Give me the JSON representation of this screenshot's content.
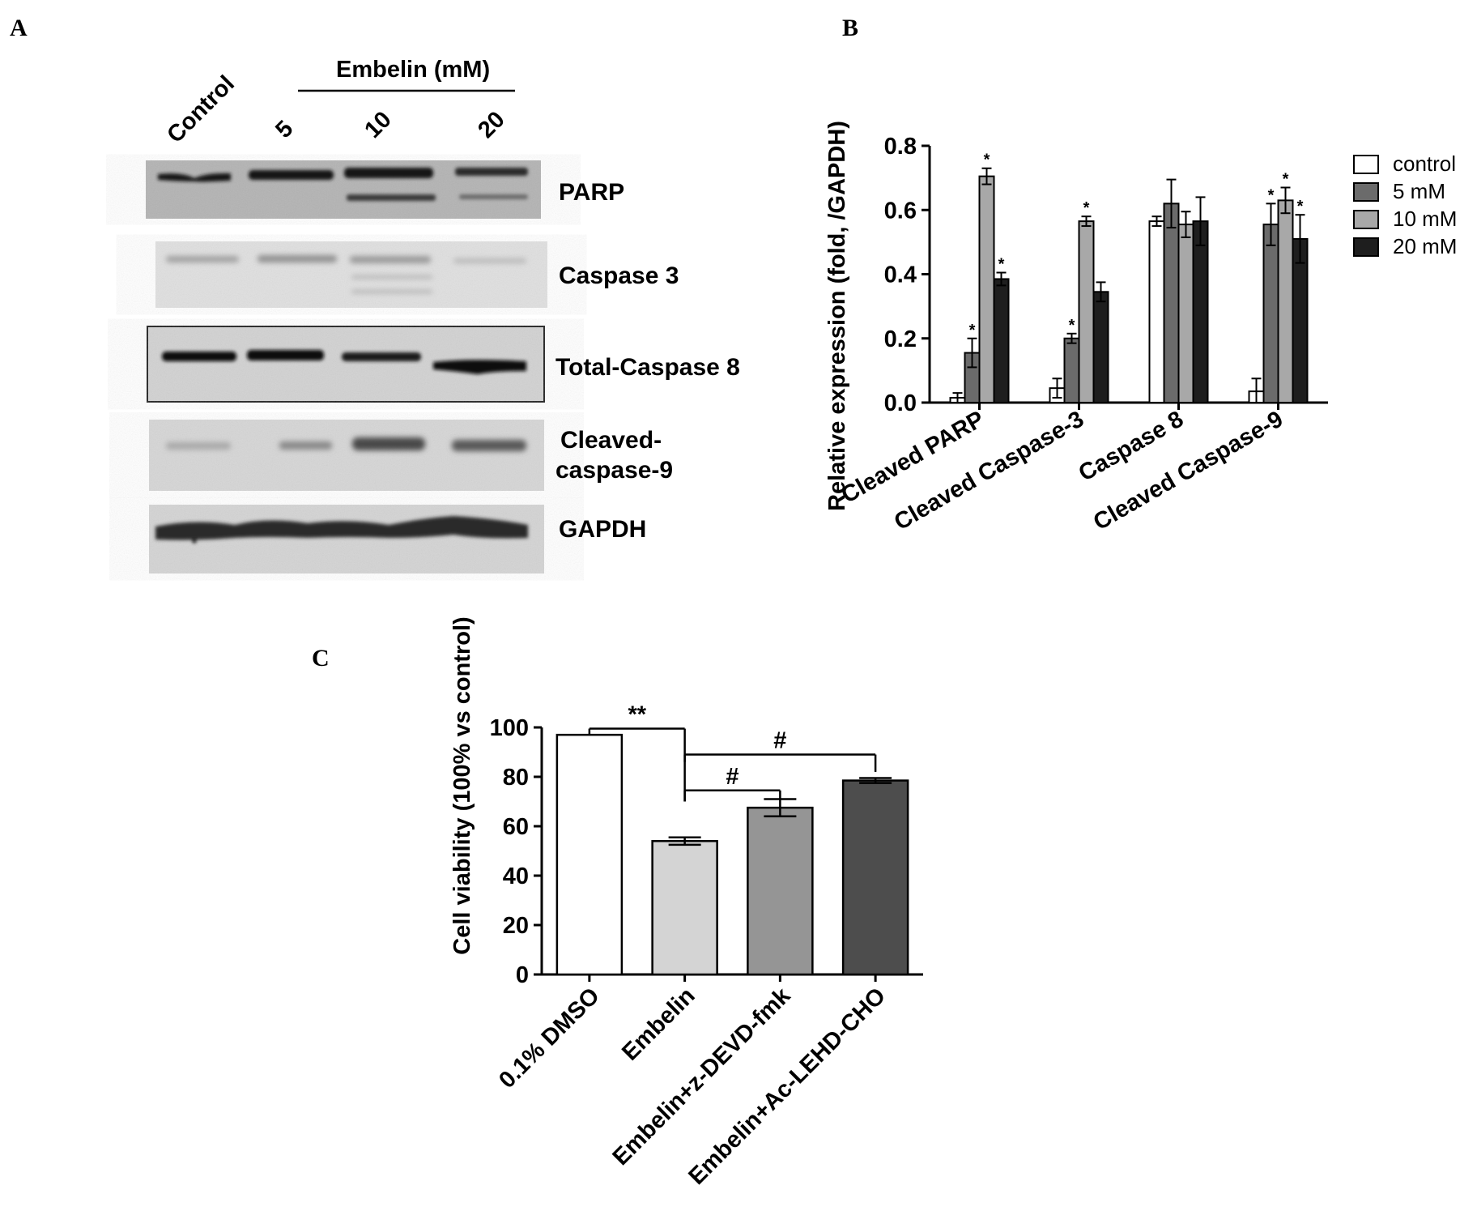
{
  "panels": {
    "a": "A",
    "b": "B",
    "c": "C"
  },
  "blot": {
    "header": "Embelin  (mM)",
    "lanes": [
      "Control",
      "5",
      "10",
      "20"
    ],
    "rows": [
      {
        "label": "PARP"
      },
      {
        "label": "Caspase 3"
      },
      {
        "label": "Total-Caspase 8"
      },
      {
        "label": "Cleaved-\ncaspase-9"
      },
      {
        "label": "GAPDH"
      }
    ]
  },
  "chart_data": [
    {
      "type": "bar",
      "panel": "B",
      "ylabel": "Relative expression (fold, /GAPDH)",
      "ylim": [
        0,
        0.8
      ],
      "yticks": [
        "0.0",
        "0.2",
        "0.4",
        "0.6",
        "0.8"
      ],
      "categories": [
        "Cleaved PARP",
        "Cleaved Caspase-3",
        "Caspase 8",
        "Cleaved Caspase-9"
      ],
      "legend_position": "right",
      "series": [
        {
          "name": "control",
          "values": [
            0.015,
            0.045,
            0.565,
            0.035
          ],
          "errors": [
            0.015,
            0.03,
            0.015,
            0.04
          ],
          "sig": [
            "",
            "",
            "",
            ""
          ],
          "color": "#ffffff"
        },
        {
          "name": "5 mM",
          "values": [
            0.155,
            0.2,
            0.62,
            0.555
          ],
          "errors": [
            0.045,
            0.015,
            0.075,
            0.065
          ],
          "sig": [
            "*",
            "*",
            "",
            "*"
          ],
          "color": "#6b6b6b"
        },
        {
          "name": "10 mM",
          "values": [
            0.705,
            0.565,
            0.555,
            0.63
          ],
          "errors": [
            0.025,
            0.015,
            0.04,
            0.04
          ],
          "sig": [
            "*",
            "*",
            "",
            "*"
          ],
          "color": "#a8a8a8"
        },
        {
          "name": "20 mM",
          "values": [
            0.385,
            0.345,
            0.565,
            0.51
          ],
          "errors": [
            0.02,
            0.03,
            0.075,
            0.075
          ],
          "sig": [
            "*",
            "",
            "",
            "*"
          ],
          "color": "#1e1e1e"
        }
      ]
    },
    {
      "type": "bar",
      "panel": "C",
      "ylabel": "Cell viability (100% vs control)",
      "ylim": [
        0,
        100
      ],
      "yticks": [
        "0",
        "20",
        "40",
        "60",
        "80",
        "100"
      ],
      "categories": [
        "0.1% DMSO",
        "Embelin",
        "Embelin+z-DEVD-fmk",
        "Embelin+Ac-LEHD-CHO"
      ],
      "values": [
        97,
        54,
        67.5,
        78.5
      ],
      "errors": [
        0,
        1.5,
        3.5,
        1
      ],
      "colors": [
        "#ffffff",
        "#d4d4d4",
        "#959595",
        "#4d4d4d"
      ],
      "brackets": [
        {
          "from": 0,
          "to": 1,
          "label": "**"
        },
        {
          "from": 1,
          "to": 2,
          "label": "#"
        },
        {
          "from": 1,
          "to": 3,
          "label": "#"
        }
      ]
    }
  ]
}
